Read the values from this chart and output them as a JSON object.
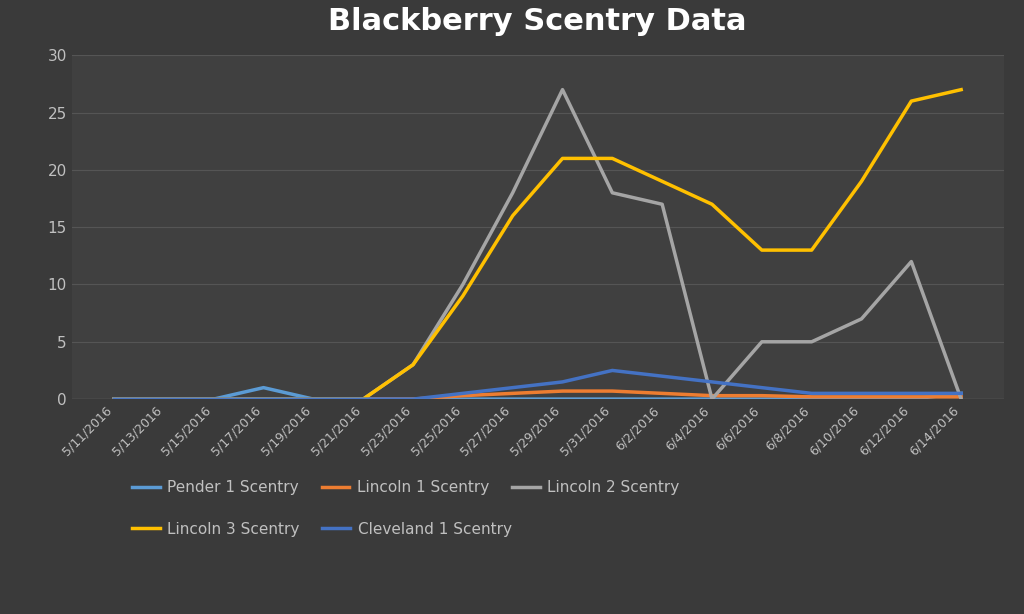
{
  "title": "Blackberry Scentry Data",
  "background_color": "#3a3a3a",
  "plot_background_color": "#404040",
  "title_color": "white",
  "tick_color": "#c0c0c0",
  "grid_color": "#555555",
  "dates": [
    "5/11/2016",
    "5/13/2016",
    "5/15/2016",
    "5/17/2016",
    "5/19/2016",
    "5/21/2016",
    "5/23/2016",
    "5/25/2016",
    "5/27/2016",
    "5/29/2016",
    "5/31/2016",
    "6/2/2016",
    "6/4/2016",
    "6/6/2016",
    "6/8/2016",
    "6/10/2016",
    "6/12/2016",
    "6/14/2016"
  ],
  "series": [
    {
      "name": "Pender 1 Scentry",
      "color": "#5b9bd5",
      "values": [
        0,
        0,
        0,
        1,
        0,
        0,
        0,
        0,
        0,
        0,
        0,
        0,
        0,
        0,
        0,
        0,
        0,
        0.5
      ]
    },
    {
      "name": "Lincoln 1 Scentry",
      "color": "#ed7d31",
      "values": [
        0,
        0,
        0,
        0,
        0,
        0,
        0,
        0.3,
        0.5,
        0.7,
        0.7,
        0.5,
        0.3,
        0.3,
        0.2,
        0.2,
        0.2,
        0.2
      ]
    },
    {
      "name": "Lincoln 2 Scentry",
      "color": "#a5a5a5",
      "values": [
        0,
        0,
        0,
        0,
        0,
        0,
        3,
        10,
        18,
        27,
        18,
        17,
        0,
        5,
        5,
        7,
        12,
        0
      ]
    },
    {
      "name": "Lincoln 3 Scentry",
      "color": "#ffc000",
      "values": [
        0,
        0,
        0,
        0,
        0,
        0,
        3,
        9,
        16,
        21,
        21,
        19,
        17,
        13,
        13,
        19,
        26,
        27
      ]
    },
    {
      "name": "Cleveland 1 Scentry",
      "color": "#4472c4",
      "values": [
        0,
        0,
        0,
        0,
        0,
        0,
        0,
        0.5,
        1,
        1.5,
        2.5,
        2,
        1.5,
        1,
        0.5,
        0.5,
        0.5,
        0.5
      ]
    }
  ],
  "ylim": [
    0,
    30
  ],
  "yticks": [
    0,
    5,
    10,
    15,
    20,
    25,
    30
  ],
  "legend_row1": [
    "Pender 1 Scentry",
    "Lincoln 1 Scentry",
    "Lincoln 2 Scentry"
  ],
  "legend_row2": [
    "Lincoln 3 Scentry",
    "Cleveland 1 Scentry"
  ]
}
